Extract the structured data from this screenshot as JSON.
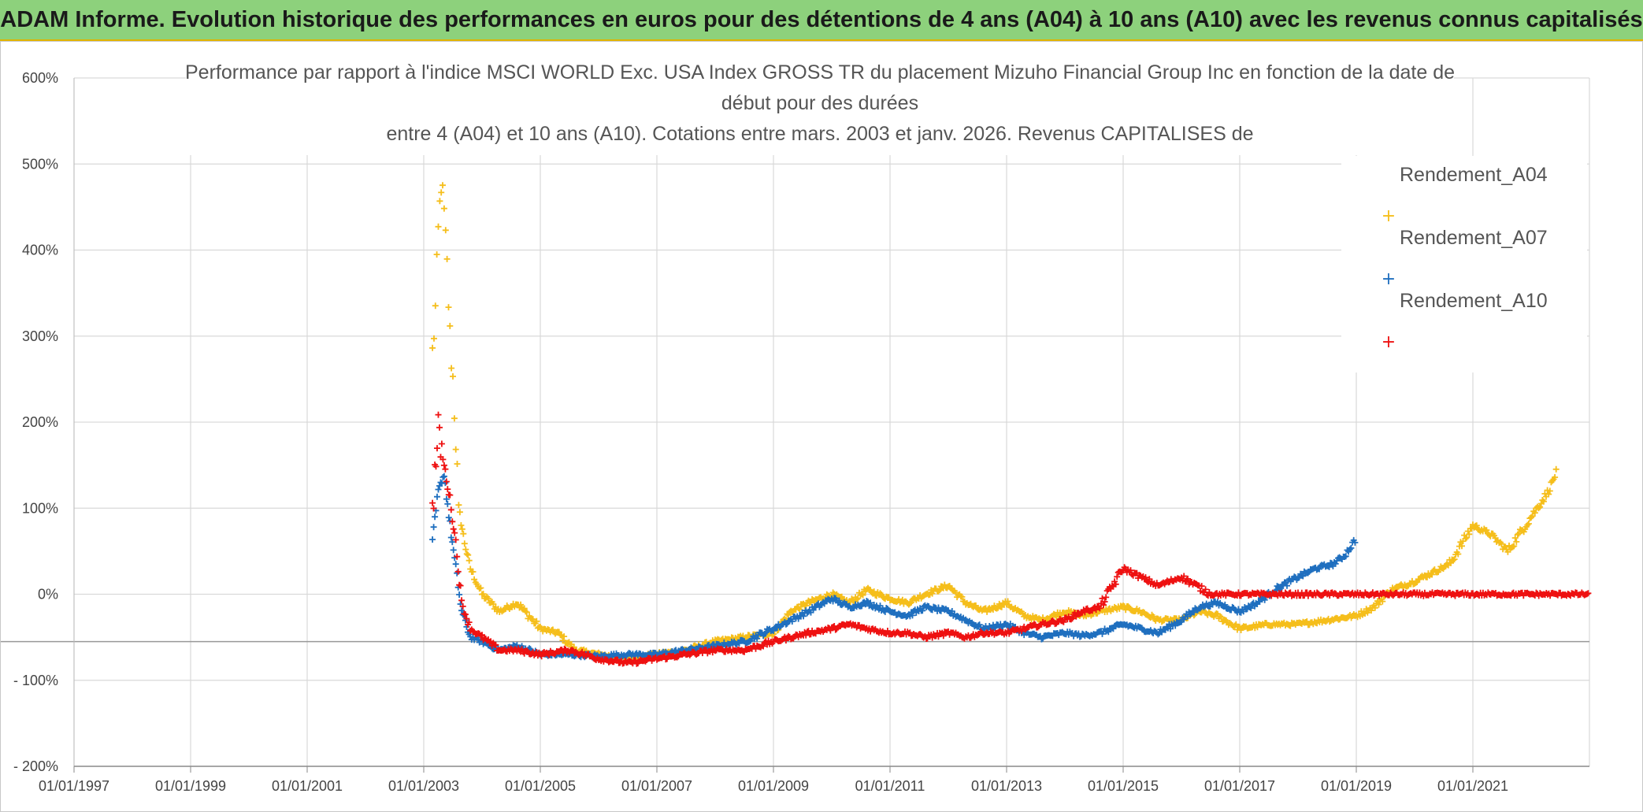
{
  "header": {
    "banner": "ADAM Informe. Evolution historique des performances en euros pour des détentions de 4 ans (A04) à 10 ans (A10) avec les revenus connus capitalisés"
  },
  "colors": {
    "banner_bg": "#8dd17c",
    "A04": "#f5be1b",
    "A07": "#1f6fbf",
    "A10": "#ee1111",
    "grid": "#d9d9d9"
  },
  "chart_data": {
    "type": "scatter",
    "title_lines": [
      "Performance par rapport à l'indice MSCI WORLD Exc. USA Index GROSS TR du placement Mizuho Financial Group Inc en fonction de la date de",
      "début pour des durées",
      "entre 4 (A04) et 10 ans (A10). Cotations entre mars. 2003 et janv. 2026. Revenus CAPITALISES de"
    ],
    "x_ticks": [
      "01/01/1997",
      "01/01/1999",
      "01/01/2001",
      "01/01/2003",
      "01/01/2005",
      "01/01/2007",
      "01/01/2009",
      "01/01/2011",
      "01/01/2013",
      "01/01/2015",
      "01/01/2017",
      "01/01/2019",
      "01/01/2021"
    ],
    "y_ticks": [
      "600%",
      "500%",
      "400%",
      "300%",
      "200%",
      "100%",
      "0%",
      "- 100%",
      "- 200%"
    ],
    "xlim": [
      1997.0,
      2023.0
    ],
    "ylim": [
      -200,
      600
    ],
    "x_label_unit": "year",
    "y_unit": "%",
    "reference_line_y": -55,
    "legend_position": "top-right",
    "series": [
      {
        "name": "Rendement_A04",
        "color_key": "A04",
        "points": [
          [
            2003.15,
            280
          ],
          [
            2003.2,
            330
          ],
          [
            2003.25,
            420
          ],
          [
            2003.3,
            480
          ],
          [
            2003.35,
            440
          ],
          [
            2003.4,
            380
          ],
          [
            2003.45,
            300
          ],
          [
            2003.5,
            250
          ],
          [
            2003.55,
            180
          ],
          [
            2003.6,
            100
          ],
          [
            2003.7,
            60
          ],
          [
            2003.8,
            30
          ],
          [
            2004.0,
            0
          ],
          [
            2004.3,
            -20
          ],
          [
            2004.6,
            -10
          ],
          [
            2005.0,
            -40
          ],
          [
            2005.3,
            -45
          ],
          [
            2005.6,
            -65
          ],
          [
            2006.0,
            -70
          ],
          [
            2006.5,
            -75
          ],
          [
            2007.0,
            -70
          ],
          [
            2007.5,
            -65
          ],
          [
            2008.0,
            -55
          ],
          [
            2008.5,
            -50
          ],
          [
            2009.0,
            -45
          ],
          [
            2009.3,
            -20
          ],
          [
            2009.6,
            -10
          ],
          [
            2010.0,
            0
          ],
          [
            2010.3,
            -10
          ],
          [
            2010.6,
            5
          ],
          [
            2011.0,
            -5
          ],
          [
            2011.3,
            -10
          ],
          [
            2011.6,
            0
          ],
          [
            2012.0,
            10
          ],
          [
            2012.3,
            -10
          ],
          [
            2012.6,
            -20
          ],
          [
            2013.0,
            -10
          ],
          [
            2013.3,
            -25
          ],
          [
            2013.6,
            -30
          ],
          [
            2014.0,
            -20
          ],
          [
            2014.3,
            -25
          ],
          [
            2014.6,
            -20
          ],
          [
            2015.0,
            -15
          ],
          [
            2015.3,
            -20
          ],
          [
            2015.6,
            -30
          ],
          [
            2016.0,
            -30
          ],
          [
            2016.3,
            -20
          ],
          [
            2016.6,
            -25
          ],
          [
            2017.0,
            -40
          ],
          [
            2017.5,
            -35
          ],
          [
            2018.0,
            -35
          ],
          [
            2018.5,
            -30
          ],
          [
            2019.0,
            -25
          ],
          [
            2019.3,
            -15
          ],
          [
            2019.6,
            5
          ],
          [
            2020.0,
            15
          ],
          [
            2020.3,
            25
          ],
          [
            2020.6,
            35
          ],
          [
            2021.0,
            80
          ],
          [
            2021.3,
            70
          ],
          [
            2021.6,
            50
          ],
          [
            2022.0,
            90
          ],
          [
            2022.3,
            120
          ],
          [
            2022.45,
            145
          ]
        ]
      },
      {
        "name": "Rendement_A07",
        "color_key": "A07",
        "points": [
          [
            2003.15,
            60
          ],
          [
            2003.25,
            120
          ],
          [
            2003.35,
            140
          ],
          [
            2003.45,
            80
          ],
          [
            2003.55,
            30
          ],
          [
            2003.65,
            -20
          ],
          [
            2003.8,
            -50
          ],
          [
            2004.0,
            -55
          ],
          [
            2004.3,
            -65
          ],
          [
            2004.6,
            -60
          ],
          [
            2005.0,
            -70
          ],
          [
            2005.5,
            -70
          ],
          [
            2006.0,
            -72
          ],
          [
            2006.5,
            -70
          ],
          [
            2007.0,
            -70
          ],
          [
            2007.5,
            -65
          ],
          [
            2008.0,
            -60
          ],
          [
            2008.5,
            -55
          ],
          [
            2009.0,
            -40
          ],
          [
            2009.3,
            -30
          ],
          [
            2009.6,
            -20
          ],
          [
            2010.0,
            -5
          ],
          [
            2010.3,
            -15
          ],
          [
            2010.6,
            -10
          ],
          [
            2011.0,
            -20
          ],
          [
            2011.3,
            -25
          ],
          [
            2011.6,
            -15
          ],
          [
            2012.0,
            -20
          ],
          [
            2012.3,
            -30
          ],
          [
            2012.6,
            -40
          ],
          [
            2013.0,
            -35
          ],
          [
            2013.3,
            -45
          ],
          [
            2013.6,
            -50
          ],
          [
            2014.0,
            -45
          ],
          [
            2014.3,
            -48
          ],
          [
            2014.6,
            -45
          ],
          [
            2015.0,
            -35
          ],
          [
            2015.3,
            -40
          ],
          [
            2015.6,
            -45
          ],
          [
            2016.0,
            -30
          ],
          [
            2016.3,
            -15
          ],
          [
            2016.6,
            -10
          ],
          [
            2017.0,
            -20
          ],
          [
            2017.3,
            -10
          ],
          [
            2017.6,
            5
          ],
          [
            2018.0,
            20
          ],
          [
            2018.3,
            30
          ],
          [
            2018.6,
            35
          ],
          [
            2018.8,
            45
          ],
          [
            2019.0,
            65
          ]
        ]
      },
      {
        "name": "Rendement_A10",
        "color_key": "A10",
        "points": [
          [
            2003.15,
            100
          ],
          [
            2003.25,
            190
          ],
          [
            2003.35,
            150
          ],
          [
            2003.45,
            110
          ],
          [
            2003.55,
            60
          ],
          [
            2003.65,
            -10
          ],
          [
            2003.8,
            -40
          ],
          [
            2004.0,
            -50
          ],
          [
            2004.3,
            -65
          ],
          [
            2004.6,
            -65
          ],
          [
            2005.0,
            -70
          ],
          [
            2005.5,
            -65
          ],
          [
            2006.0,
            -75
          ],
          [
            2006.5,
            -80
          ],
          [
            2007.0,
            -75
          ],
          [
            2007.5,
            -70
          ],
          [
            2008.0,
            -65
          ],
          [
            2008.5,
            -65
          ],
          [
            2009.0,
            -55
          ],
          [
            2009.3,
            -50
          ],
          [
            2009.6,
            -45
          ],
          [
            2010.0,
            -40
          ],
          [
            2010.3,
            -35
          ],
          [
            2010.6,
            -40
          ],
          [
            2011.0,
            -45
          ],
          [
            2011.3,
            -45
          ],
          [
            2011.6,
            -50
          ],
          [
            2012.0,
            -45
          ],
          [
            2012.3,
            -50
          ],
          [
            2012.6,
            -45
          ],
          [
            2013.0,
            -45
          ],
          [
            2013.3,
            -40
          ],
          [
            2013.6,
            -35
          ],
          [
            2014.0,
            -30
          ],
          [
            2014.3,
            -20
          ],
          [
            2014.6,
            -15
          ],
          [
            2015.0,
            30
          ],
          [
            2015.3,
            20
          ],
          [
            2015.6,
            10
          ],
          [
            2015.8,
            15
          ],
          [
            2016.0,
            20
          ],
          [
            2016.5,
            0
          ],
          [
            2017.5,
            0
          ],
          [
            2018.5,
            0
          ],
          [
            2019.5,
            0
          ],
          [
            2020.5,
            0
          ],
          [
            2021.5,
            0
          ],
          [
            2022.5,
            0
          ],
          [
            2023.0,
            0
          ]
        ]
      }
    ]
  }
}
